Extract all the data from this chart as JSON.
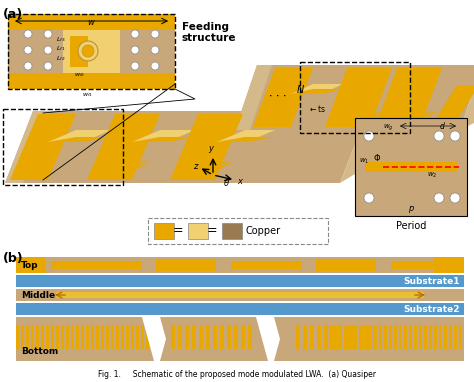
{
  "bg_color": "#ffffff",
  "tan_color": "#C8A87A",
  "tan_light": "#D4B98A",
  "gold_color": "#E8A800",
  "light_gold": "#F0D070",
  "blue_color": "#5599CC",
  "dark_tan": "#9A7A50",
  "label_a": "(a)",
  "label_b": "(b)",
  "feeding_label1": "Feeding",
  "feeding_label2": "structure",
  "period_label": "Period",
  "substrate1_label": "Substrate1",
  "substrate2_label": "Substrate2",
  "top_label": "Top",
  "middle_label": "Middle",
  "bottom_label": "Bottom",
  "copper_label": "Copper",
  "caption": "Fig. 1.     Schematic of the proposed mode modulated LWA.  (a) Quasiper"
}
